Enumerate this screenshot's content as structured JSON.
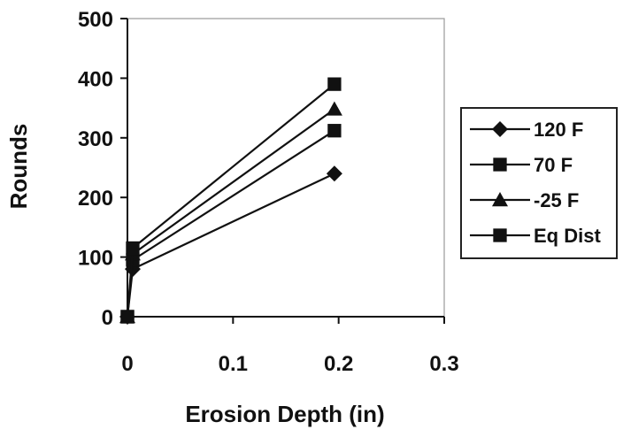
{
  "chart_data": {
    "type": "line",
    "title": "",
    "xlabel": "Erosion Depth (in)",
    "ylabel": "Rounds",
    "xlim": [
      0,
      0.3
    ],
    "ylim": [
      0,
      500
    ],
    "x_ticks": [
      0,
      0.1,
      0.2,
      0.3
    ],
    "x_tick_labels": [
      "0",
      "0.1",
      "0.2",
      "0.3"
    ],
    "y_ticks": [
      0,
      100,
      200,
      300,
      400,
      500
    ],
    "y_tick_labels": [
      "0",
      "100",
      "200",
      "300",
      "400",
      "500"
    ],
    "grid": false,
    "legend_position": "right",
    "series": [
      {
        "name": "120 F",
        "marker": "diamond",
        "points": [
          [
            0,
            0
          ],
          [
            0.005,
            80
          ],
          [
            0.196,
            240
          ]
        ]
      },
      {
        "name": "70 F",
        "marker": "square",
        "points": [
          [
            0,
            0
          ],
          [
            0.005,
            95
          ],
          [
            0.196,
            312
          ]
        ]
      },
      {
        "name": "-25 F",
        "marker": "triangle",
        "points": [
          [
            0,
            0
          ],
          [
            0.005,
            105
          ],
          [
            0.196,
            348
          ]
        ]
      },
      {
        "name": "Eq Dist",
        "marker": "square",
        "points": [
          [
            0,
            0
          ],
          [
            0.005,
            115
          ],
          [
            0.196,
            390
          ]
        ]
      }
    ],
    "colors": {
      "line": "#111111",
      "marker": "#111111",
      "axis": "#111111",
      "plot_border": "#9a9a9a",
      "legend_border": "#222222"
    }
  }
}
